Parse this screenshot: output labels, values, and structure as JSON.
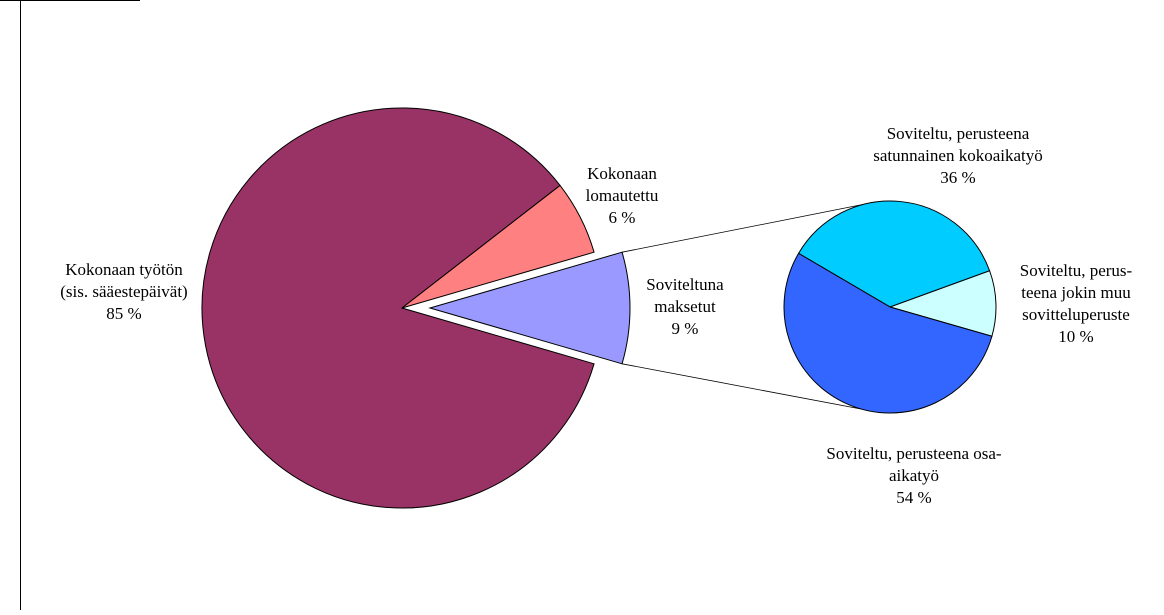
{
  "chart_data": [
    {
      "type": "pie",
      "title": "",
      "slices": [
        {
          "label_lines": [
            "Kokonaan työtön",
            "(sis. sääestepäivät)",
            "85 %"
          ],
          "value": 85,
          "color": "#993366",
          "exploded": false
        },
        {
          "label_lines": [
            "Kokonaan",
            "lomautettu",
            "6 %"
          ],
          "value": 6,
          "color": "#FF8080",
          "exploded": false
        },
        {
          "label_lines": [
            "Soviteltuna",
            "maksetut",
            "9 %"
          ],
          "value": 9,
          "color": "#9999FF",
          "exploded": true
        }
      ]
    },
    {
      "type": "pie",
      "title": "",
      "slices": [
        {
          "label_lines": [
            "Soviteltu, perusteena",
            "satunnainen kokoaikatyö",
            "36 %"
          ],
          "value": 36,
          "color": "#00CCFF"
        },
        {
          "label_lines": [
            "Soviteltu, perus-",
            "teena jokin muu",
            "sovitteluperuste",
            "10 %"
          ],
          "value": 10,
          "color": "#CCFFFF"
        },
        {
          "label_lines": [
            "Soviteltu, perusteena osa-",
            "aikatyö",
            "54 %"
          ],
          "value": 54,
          "color": "#3366FF"
        }
      ]
    }
  ]
}
